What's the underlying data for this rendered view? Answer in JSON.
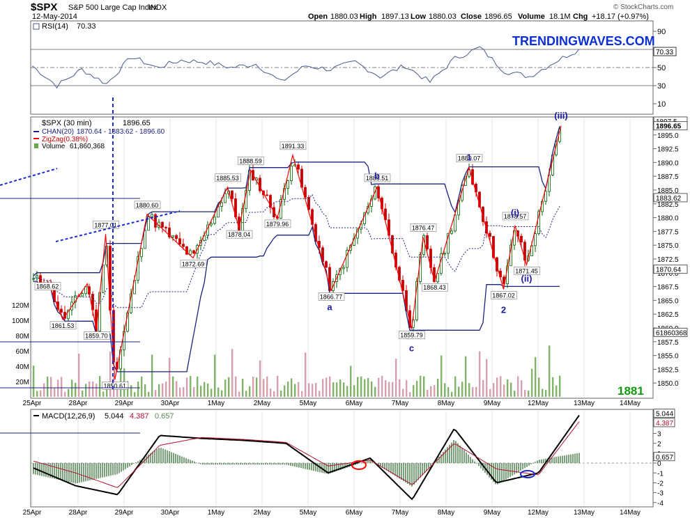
{
  "header": {
    "symbol": "$SPX",
    "name": "S&P 500 Large Cap Index",
    "exchange": "INDX",
    "date": "12-May-2014",
    "open_label": "Open",
    "open": "1880.03",
    "high_label": "High",
    "high": "1897.13",
    "low_label": "Low",
    "low": "1880.03",
    "close_label": "Close",
    "close": "1896.65",
    "volume_label": "Volume",
    "volume": "18.1M",
    "chg_label": "Chg",
    "chg": "+18.17 (+0.97%)",
    "copyright": "© StockCharts.com"
  },
  "brand": {
    "watermark": "TRENDINGWAVES.COM",
    "target": "1881"
  },
  "colors": {
    "price_up": "#006400",
    "price_down": "#c80000",
    "channel": "#1a237e",
    "zigzag": "#ff0000",
    "volume": "#d08fa0",
    "volume_up": "#6aa84f",
    "rsi": "#4a5a8c",
    "macd": "#000000",
    "signal": "#b01030",
    "histogram": "#5a8a5a",
    "wave_label": "#1a1aa0",
    "annotation": "#1a2ad0",
    "highlight": "#ff0000",
    "watermark": "#0d2fd6",
    "target": "#119911"
  },
  "chart_data": [
    {
      "type": "line",
      "panel": "RSI",
      "label": "RSI(14)",
      "value": "70.33",
      "ylim": [
        0,
        100
      ],
      "yticks": [
        "90",
        "70",
        "50",
        "30",
        "10"
      ],
      "reference_lines": [
        70,
        50,
        30
      ],
      "current_label": "70.33",
      "x": [
        "25Apr",
        "25Apr",
        "28Apr",
        "28Apr",
        "29Apr",
        "29Apr",
        "30Apr",
        "1May",
        "1May",
        "2May",
        "2May",
        "5May",
        "5May",
        "6May",
        "6May",
        "7May",
        "7May",
        "8May",
        "8May",
        "9May",
        "9May",
        "12May",
        "12May"
      ],
      "values": [
        52,
        30,
        48,
        32,
        62,
        50,
        58,
        56,
        50,
        54,
        34,
        52,
        48,
        56,
        40,
        52,
        34,
        60,
        72,
        46,
        40,
        56,
        70.33
      ]
    },
    {
      "type": "line",
      "panel": "price",
      "series_label": "$SPX (30 min)",
      "last": "1896.65",
      "legend": [
        {
          "name": "CHAN(20)",
          "values": "1870.64 - 1883.62 - 1896.60"
        },
        {
          "name": "ZigZag(0.38%)",
          "values": ""
        },
        {
          "name": "Volume",
          "values": "61,860,368"
        }
      ],
      "ylim": [
        1847.5,
        1898.0
      ],
      "yticks": [
        "1895.0",
        "1892.5",
        "1890.0",
        "1887.5",
        "1885.0",
        "1882.5",
        "1880.0",
        "1877.5",
        "1875.0",
        "1872.5",
        "1870.0",
        "1867.5",
        "1865.0",
        "1862.5",
        "1860.0",
        "1857.5",
        "1855.0",
        "1852.5",
        "1850.0"
      ],
      "axis_markers": [
        {
          "label": "1897.5",
          "value": 1897.5
        },
        {
          "label": "1896.65",
          "value": 1896.65
        },
        {
          "label": "1883.62",
          "value": 1883.62
        },
        {
          "label": "1870.64",
          "value": 1870.64
        },
        {
          "label": "61860368",
          "value": 1859.2
        }
      ],
      "xticks": [
        "25Apr",
        "28Apr",
        "29Apr",
        "30Apr",
        "1May",
        "2May",
        "5May",
        "6May",
        "7May",
        "8May",
        "9May",
        "12May",
        "13May",
        "14May"
      ],
      "zigzag": [
        {
          "x": "25Apr",
          "y": 1868.62
        },
        {
          "x": "25Apr",
          "y": 1861.53
        },
        {
          "x": "28Apr",
          "y": 1868.0
        },
        {
          "x": "28Apr",
          "y": 1859.7
        },
        {
          "x": "28Apr",
          "y": 1877.01
        },
        {
          "x": "28Apr",
          "y": 1850.61
        },
        {
          "x": "29Apr",
          "y": 1880.6
        },
        {
          "x": "30Apr",
          "y": 1872.69
        },
        {
          "x": "1May",
          "y": 1885.53
        },
        {
          "x": "1May",
          "y": 1878.04
        },
        {
          "x": "1May",
          "y": 1888.59
        },
        {
          "x": "2May",
          "y": 1879.96
        },
        {
          "x": "2May",
          "y": 1891.33
        },
        {
          "x": "5May",
          "y": 1866.77
        },
        {
          "x": "6May",
          "y": 1885.51
        },
        {
          "x": "7May",
          "y": 1859.79
        },
        {
          "x": "7May",
          "y": 1876.47
        },
        {
          "x": "7May",
          "y": 1868.43
        },
        {
          "x": "8May",
          "y": 1889.07
        },
        {
          "x": "9May",
          "y": 1867.02
        },
        {
          "x": "9May",
          "y": 1878.57
        },
        {
          "x": "9May",
          "y": 1871.45
        },
        {
          "x": "12May",
          "y": 1896.65
        }
      ],
      "price_labels": [
        "1868.62",
        "1861.53",
        "1859.70",
        "1877.01",
        "1850.61",
        "1880.60",
        "1872.69",
        "1885.53",
        "1878.04",
        "1888.59",
        "1879.96",
        "1891.33",
        "1866.77",
        "1885.51",
        "1859.79",
        "1876.47",
        "1868.43",
        "1889.07",
        "1867.02",
        "1878.57",
        "1871.45",
        "1896.65"
      ],
      "wave_labels": [
        "a",
        "b",
        "c",
        "1",
        "2",
        "(i)",
        "(ii)",
        "(iii)"
      ],
      "volume_ticks": [
        "120M",
        "100M",
        "80M",
        "60M",
        "40M",
        "20M"
      ]
    },
    {
      "type": "line",
      "panel": "MACD",
      "label": "MACD(12,26,9)",
      "macd": "5.044",
      "signal": "4.387",
      "histogram": "0.657",
      "yticks": [
        "3",
        "2",
        "1",
        "0",
        "-1",
        "-2",
        "-3",
        "-4"
      ],
      "axis_markers": [
        "5.044",
        "4.387",
        "0.657"
      ],
      "ylim": [
        -4.3,
        5.3
      ],
      "x": [
        "25Apr",
        "28Apr",
        "28Apr",
        "29Apr",
        "30Apr",
        "1May",
        "2May",
        "5May",
        "6May",
        "7May",
        "8May",
        "9May",
        "12May",
        "12May"
      ],
      "macd_values": [
        -0.5,
        -2.3,
        -3.2,
        2.8,
        2.5,
        2.3,
        2.0,
        -1.0,
        0.5,
        -3.7,
        3.5,
        -2.0,
        -1.0,
        5.044
      ],
      "signal_values": [
        0.2,
        -1.0,
        -2.5,
        1.8,
        2.6,
        2.4,
        2.1,
        -0.3,
        0.3,
        -2.2,
        2.0,
        -0.6,
        -1.2,
        4.387
      ]
    }
  ]
}
